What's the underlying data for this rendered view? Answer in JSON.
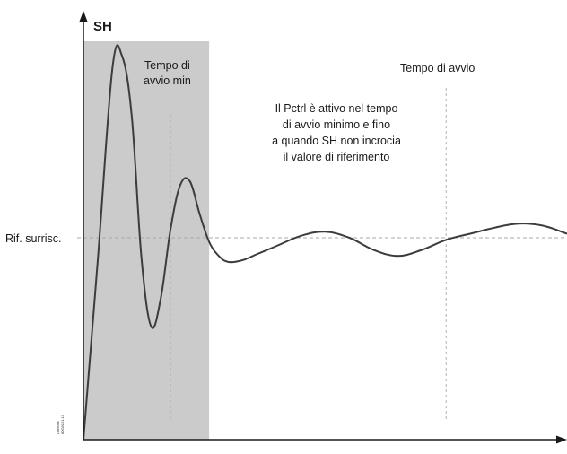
{
  "chart_data": {
    "type": "line",
    "ylabel": "SH",
    "xlabel": "",
    "reference_label": "Rif. surrisc.",
    "annotations": {
      "min_start_time": [
        "Tempo di",
        "avvio min"
      ],
      "start_time": "Tempo di avvio",
      "pctrl_note": [
        "Il Pctrl è attivo nel tempo",
        "di avvio minimo e fino",
        "a quando SH non incrocia",
        "il valore di riferimento"
      ]
    },
    "watermark": [
      "Danfoss",
      "80G8151.10"
    ],
    "xlim": [
      0,
      100
    ],
    "ylim": [
      0,
      100
    ],
    "reference_value": 50,
    "shaded_region": [
      0,
      26
    ],
    "vertical_markers": [
      18,
      75
    ],
    "series": [
      {
        "x": [
          0,
          3,
          6,
          8,
          10,
          12,
          14,
          16,
          18,
          20,
          22,
          24,
          26,
          28,
          30,
          33,
          36,
          40,
          45,
          50,
          55,
          60,
          65,
          70,
          75,
          80,
          85,
          90,
          95,
          100
        ],
        "y": [
          0,
          45,
          92,
          95,
          80,
          45,
          28,
          35,
          52,
          63,
          64,
          56,
          49,
          45.5,
          44,
          44.5,
          46,
          48,
          50.5,
          51.5,
          50,
          47,
          45.5,
          47,
          49.5,
          51,
          52.5,
          53.5,
          53,
          51
        ]
      }
    ]
  }
}
